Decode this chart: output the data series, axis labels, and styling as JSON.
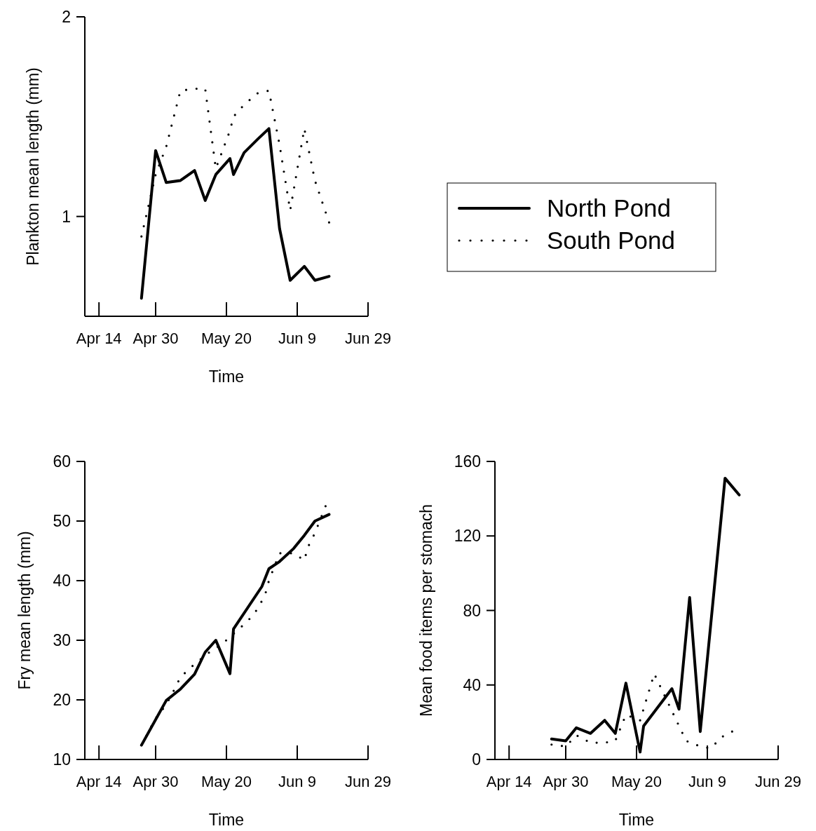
{
  "chart_data": [
    {
      "type": "line",
      "xlabel": "Time",
      "ylabel": "Plankton mean length (mm)",
      "xlim": [
        "--04-10",
        "--06-29"
      ],
      "xticks": [
        {
          "value": "--04-14",
          "label": "Apr 14"
        },
        {
          "value": "--04-30",
          "label": "Apr 30"
        },
        {
          "value": "--05-20",
          "label": "May 20"
        },
        {
          "value": "--06-09",
          "label": "Jun 9"
        },
        {
          "value": "--06-29",
          "label": "Jun 29"
        }
      ],
      "ylim": [
        0.5,
        2
      ],
      "yticks": [
        1,
        2
      ],
      "legend": "right",
      "series": [
        {
          "name": "North Pond",
          "color": "#000000",
          "line_style": "solid",
          "x": [
            "--04-26",
            "--04-30",
            "--05-03",
            "--05-07",
            "--05-11",
            "--05-14",
            "--05-17",
            "--05-21",
            "--05-22",
            "--05-25",
            "--05-29",
            "--06-01",
            "--06-04",
            "--06-07",
            "--06-11",
            "--06-14",
            "--06-18"
          ],
          "values": [
            0.59,
            1.33,
            1.17,
            1.18,
            1.23,
            1.08,
            1.21,
            1.29,
            1.21,
            1.32,
            1.39,
            1.44,
            0.94,
            0.68,
            0.75,
            0.68,
            0.7
          ]
        },
        {
          "name": "South Pond",
          "color": "#000000",
          "line_style": "dotted",
          "x": [
            "--04-26",
            "--04-30",
            "--05-03",
            "--05-07",
            "--05-11",
            "--05-14",
            "--05-17",
            "--05-21",
            "--05-22",
            "--05-25",
            "--05-29",
            "--06-01",
            "--06-04",
            "--06-07",
            "--06-11",
            "--06-14",
            "--06-18"
          ],
          "values": [
            0.9,
            1.21,
            1.35,
            1.63,
            1.64,
            1.64,
            1.24,
            1.43,
            1.5,
            1.56,
            1.62,
            1.63,
            1.36,
            1.03,
            1.44,
            1.18,
            0.97
          ]
        }
      ]
    },
    {
      "type": "line",
      "xlabel": "Time",
      "ylabel": "Fry mean length (mm)",
      "xlim": [
        "--04-10",
        "--06-29"
      ],
      "xticks": [
        {
          "value": "--04-14",
          "label": "Apr 14"
        },
        {
          "value": "--04-30",
          "label": "Apr 30"
        },
        {
          "value": "--05-20",
          "label": "May 20"
        },
        {
          "value": "--06-09",
          "label": "Jun 9"
        },
        {
          "value": "--06-29",
          "label": "Jun 29"
        }
      ],
      "ylim": [
        10,
        60
      ],
      "yticks": [
        10,
        20,
        30,
        40,
        50,
        60
      ],
      "series": [
        {
          "color": "#000000",
          "line_style": "solid",
          "x": [
            "--04-26",
            "--05-03",
            "--05-07",
            "--05-11",
            "--05-14",
            "--05-17",
            "--05-21",
            "--05-22",
            "--05-30",
            "--06-01",
            "--06-04",
            "--06-08",
            "--06-11",
            "--06-14",
            "--06-18"
          ],
          "values": [
            12.4,
            19.9,
            21.8,
            24.3,
            28,
            30,
            24.4,
            31.9,
            39,
            42,
            43.2,
            45.4,
            47.6,
            50,
            51.1
          ]
        },
        {
          "color": "#000000",
          "line_style": "dotted",
          "x": [
            "--04-26",
            "--04-30",
            "--05-03",
            "--05-05",
            "--05-07",
            "--05-11",
            "--05-15",
            "--05-19",
            "--05-26",
            "--05-29",
            "--05-31",
            "--06-01",
            "--06-04",
            "--06-08",
            "--06-11",
            "--06-12",
            "--06-14",
            "--06-17"
          ],
          "values": [
            12.4,
            16.9,
            19.2,
            21.4,
            23.8,
            26,
            27.9,
            29.5,
            33.2,
            35.4,
            37.8,
            40,
            44.6,
            44.6,
            43.4,
            45.6,
            48,
            52.5
          ]
        }
      ]
    },
    {
      "type": "line",
      "xlabel": "Time",
      "ylabel": "Mean food items per stomach",
      "xlim": [
        "--04-10",
        "--06-29"
      ],
      "xticks": [
        {
          "value": "--04-14",
          "label": "Apr 14"
        },
        {
          "value": "--04-30",
          "label": "Apr 30"
        },
        {
          "value": "--05-20",
          "label": "May 20"
        },
        {
          "value": "--06-09",
          "label": "Jun 9"
        },
        {
          "value": "--06-29",
          "label": "Jun 29"
        }
      ],
      "ylim": [
        0,
        160
      ],
      "yticks": [
        0,
        40,
        80,
        120,
        160
      ],
      "series": [
        {
          "color": "#000000",
          "line_style": "solid",
          "x": [
            "--04-26",
            "--04-30",
            "--05-03",
            "--05-07",
            "--05-11",
            "--05-14",
            "--05-17",
            "--05-21",
            "--05-22",
            "--05-30",
            "--06-01",
            "--06-04",
            "--06-07",
            "--06-14",
            "--06-18"
          ],
          "values": [
            11,
            10,
            17,
            14,
            21,
            14,
            41,
            4,
            18,
            38,
            27,
            87,
            15,
            151,
            142
          ]
        },
        {
          "color": "#000000",
          "line_style": "dotted",
          "x": [
            "--04-26",
            "--04-30",
            "--05-03",
            "--05-07",
            "--05-11",
            "--05-14",
            "--05-17",
            "--05-21",
            "--05-25",
            "--06-03",
            "--06-07",
            "--06-10",
            "--06-13",
            "--06-16"
          ],
          "values": [
            8,
            7,
            13,
            9,
            9,
            10,
            24,
            21,
            46,
            10,
            7,
            6,
            12,
            15
          ]
        }
      ]
    }
  ]
}
